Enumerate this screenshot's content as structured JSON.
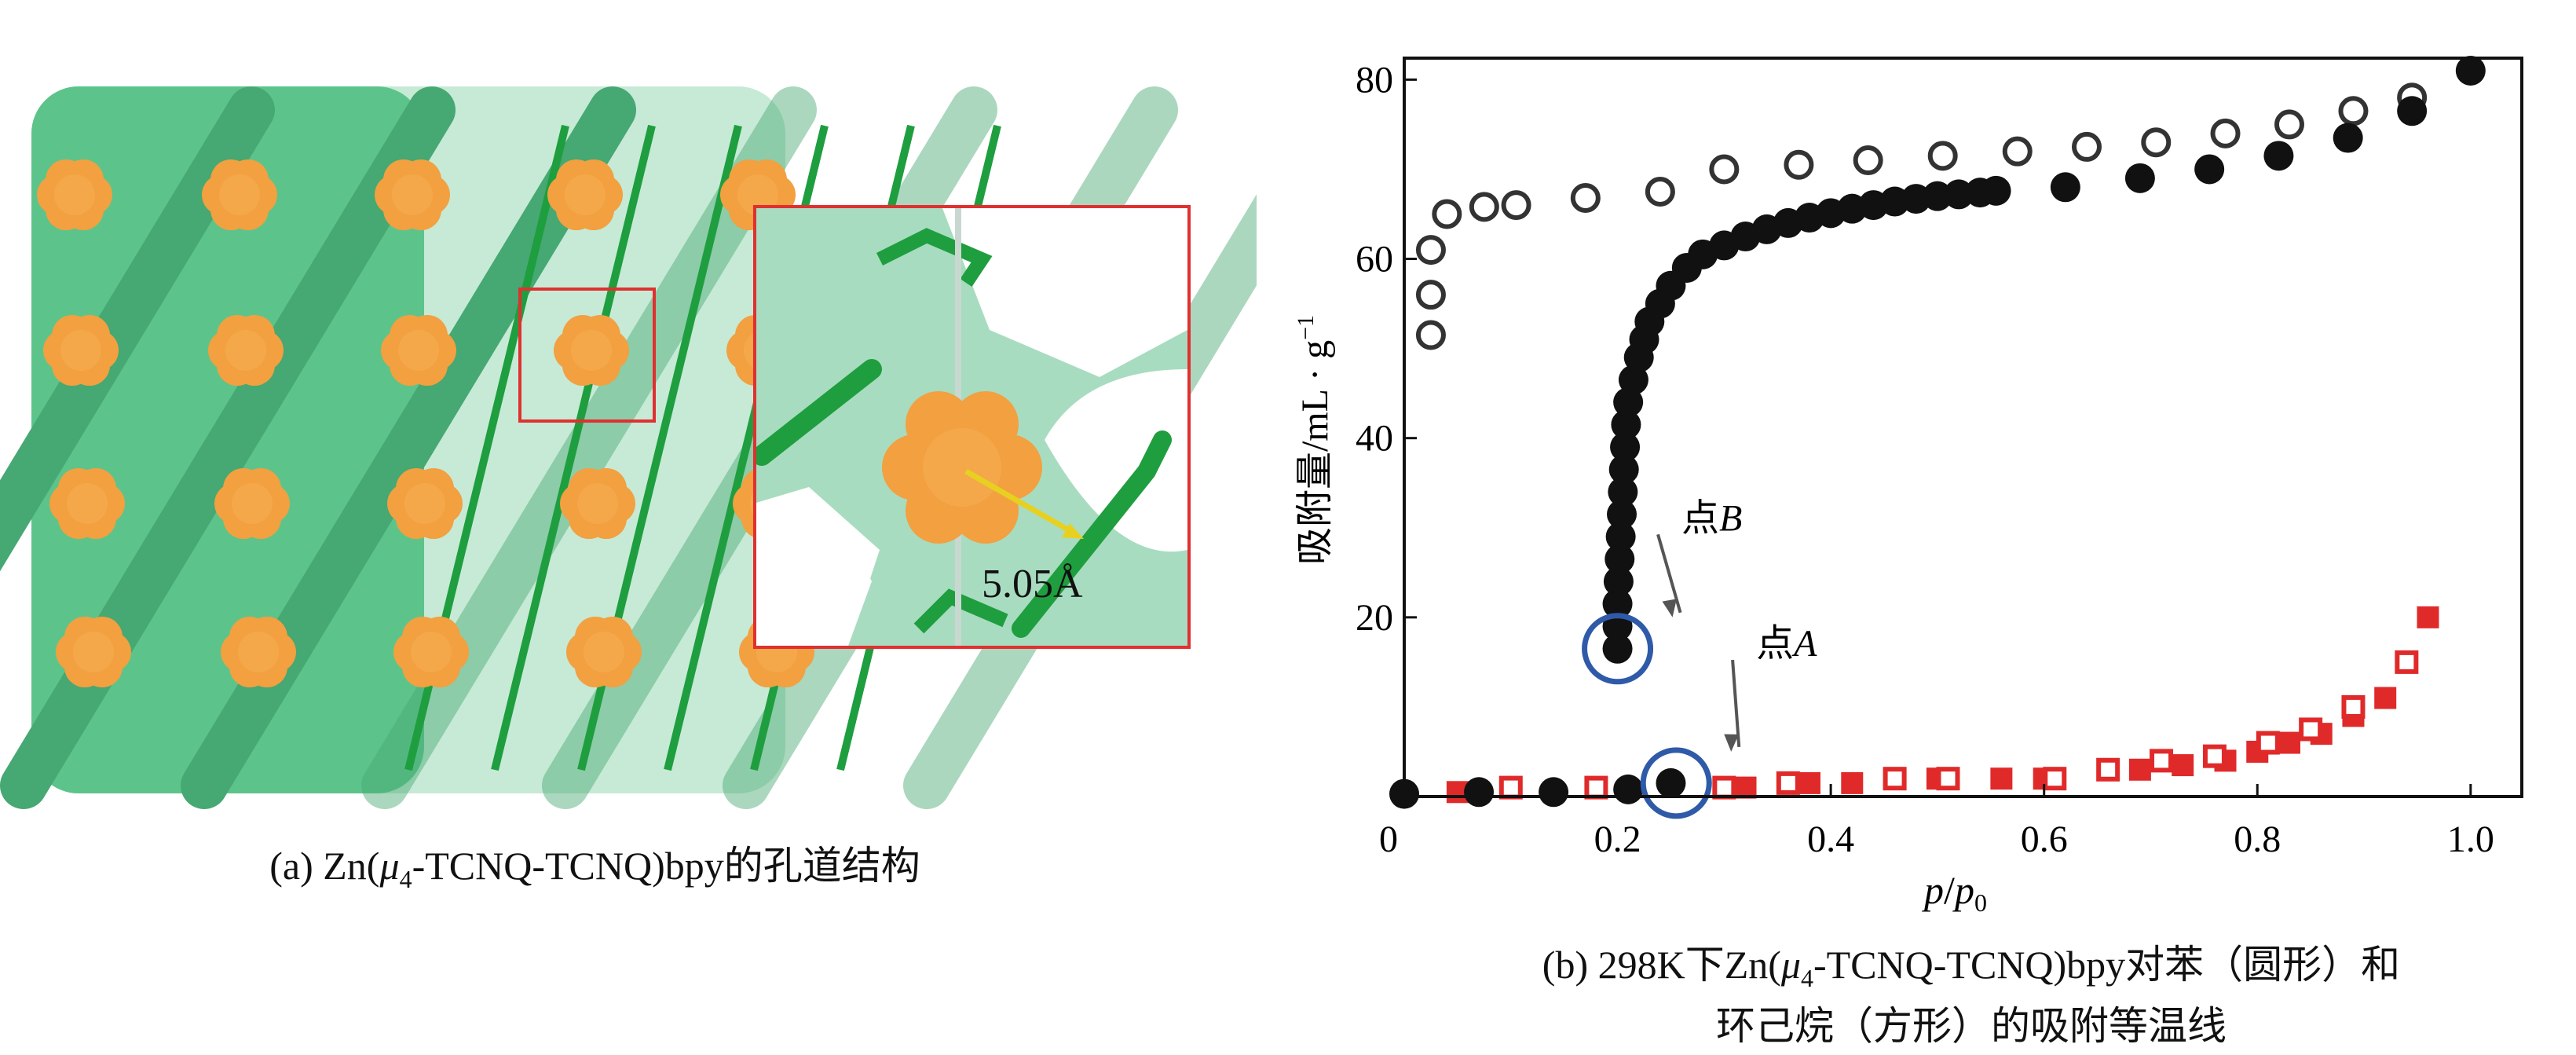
{
  "panel_a": {
    "caption_prefix": "(a) Zn(",
    "caption_mu": "μ",
    "caption_sub": "4",
    "caption_suffix": "-TCNQ-TCNQ)bpy的孔道结构",
    "distance_label": "5.05Å",
    "colors": {
      "framework": "#5cc48a",
      "guest": "#f2a040",
      "stick": "#1f9e3f",
      "box": "#e03030",
      "arrow": "#e8d020"
    }
  },
  "chart_data": {
    "type": "scatter",
    "title": "",
    "xlabel_italic_p": "p",
    "xlabel_slash": "/",
    "xlabel_p0": "p",
    "xlabel_sub": "0",
    "ylabel": "吸附量/mL · g",
    "ylabel_sup": "−1",
    "xlim": [
      0,
      1.048
    ],
    "ylim": [
      0,
      82.4
    ],
    "xticks": [
      0,
      0.2,
      0.4,
      0.6,
      0.8,
      1.0
    ],
    "xtick_labels": [
      "0",
      "0.2",
      "0.4",
      "0.6",
      "0.8",
      "1.0"
    ],
    "yticks": [
      20,
      40,
      60,
      80
    ],
    "ytick_labels": [
      "20",
      "40",
      "60",
      "80"
    ],
    "grid": false,
    "series": [
      {
        "name": "benzene-adsorption",
        "marker": "filled-circle",
        "color": "#111111",
        "x": [
          0.0,
          0.07,
          0.14,
          0.21,
          0.25,
          0.2,
          0.2,
          0.2,
          0.201,
          0.202,
          0.203,
          0.204,
          0.205,
          0.206,
          0.207,
          0.208,
          0.21,
          0.215,
          0.22,
          0.225,
          0.23,
          0.24,
          0.25,
          0.265,
          0.28,
          0.3,
          0.32,
          0.34,
          0.36,
          0.38,
          0.4,
          0.42,
          0.44,
          0.46,
          0.48,
          0.5,
          0.52,
          0.54,
          0.555,
          0.62,
          0.69,
          0.755,
          0.82,
          0.885,
          0.945,
          1.0
        ],
        "y": [
          0.3,
          0.5,
          0.5,
          0.8,
          1.5,
          16.5,
          19,
          21.5,
          24,
          26.5,
          29,
          31.5,
          34,
          36.5,
          39,
          41.5,
          44,
          46.5,
          49,
          51,
          53,
          55,
          57,
          59,
          60.5,
          61.5,
          62.5,
          63.3,
          64,
          64.6,
          65.1,
          65.6,
          66,
          66.4,
          66.7,
          67,
          67.2,
          67.4,
          67.6,
          68,
          69,
          70,
          71.5,
          73.5,
          76.5,
          81
        ]
      },
      {
        "name": "benzene-desorption",
        "marker": "open-circle",
        "color": "#333333",
        "x": [
          0.025,
          0.025,
          0.025,
          0.04,
          0.075,
          0.105,
          0.17,
          0.24,
          0.3,
          0.37,
          0.435,
          0.505,
          0.575,
          0.64,
          0.705,
          0.77,
          0.83,
          0.89,
          0.945
        ],
        "y": [
          51.5,
          56,
          61,
          65,
          65.8,
          66,
          66.8,
          67.5,
          70,
          70.5,
          71,
          71.5,
          72,
          72.5,
          73,
          74,
          75,
          76.5,
          78
        ]
      },
      {
        "name": "cyclohexane-adsorption",
        "marker": "filled-square",
        "color": "#e02a2a",
        "x": [
          0.05,
          0.32,
          0.38,
          0.42,
          0.5,
          0.56,
          0.6,
          0.69,
          0.73,
          0.77,
          0.8,
          0.83,
          0.86,
          0.89,
          0.92,
          0.94,
          0.96
        ],
        "y": [
          0.5,
          1,
          1.5,
          1.5,
          2,
          2,
          2,
          3,
          3.5,
          4,
          5,
          6,
          7,
          9,
          11,
          15,
          20
        ]
      },
      {
        "name": "cyclohexane-desorption",
        "marker": "open-square",
        "color": "#e02a2a",
        "x": [
          0.1,
          0.18,
          0.3,
          0.36,
          0.46,
          0.51,
          0.61,
          0.66,
          0.71,
          0.76,
          0.81,
          0.85,
          0.89,
          0.94
        ],
        "y": [
          1,
          1,
          1,
          1.5,
          2,
          2,
          2,
          3,
          4,
          4.5,
          6,
          7.5,
          10,
          15
        ]
      }
    ],
    "annotations": [
      {
        "label_char": "点",
        "label_letter": "B",
        "point": [
          0.2,
          16.5
        ],
        "label_at": [
          0.26,
          31
        ]
      },
      {
        "label_char": "点",
        "label_letter": "A",
        "point": [
          0.255,
          1.5
        ],
        "label_at": [
          0.33,
          17
        ]
      }
    ],
    "caption_line1_prefix": "(b) 298K下Zn(",
    "caption_mu": "μ",
    "caption_sub": "4",
    "caption_line1_suffix": "-TCNQ-TCNQ)bpy对苯（圆形）和",
    "caption_line2": "环己烷（方形）的吸附等温线"
  }
}
